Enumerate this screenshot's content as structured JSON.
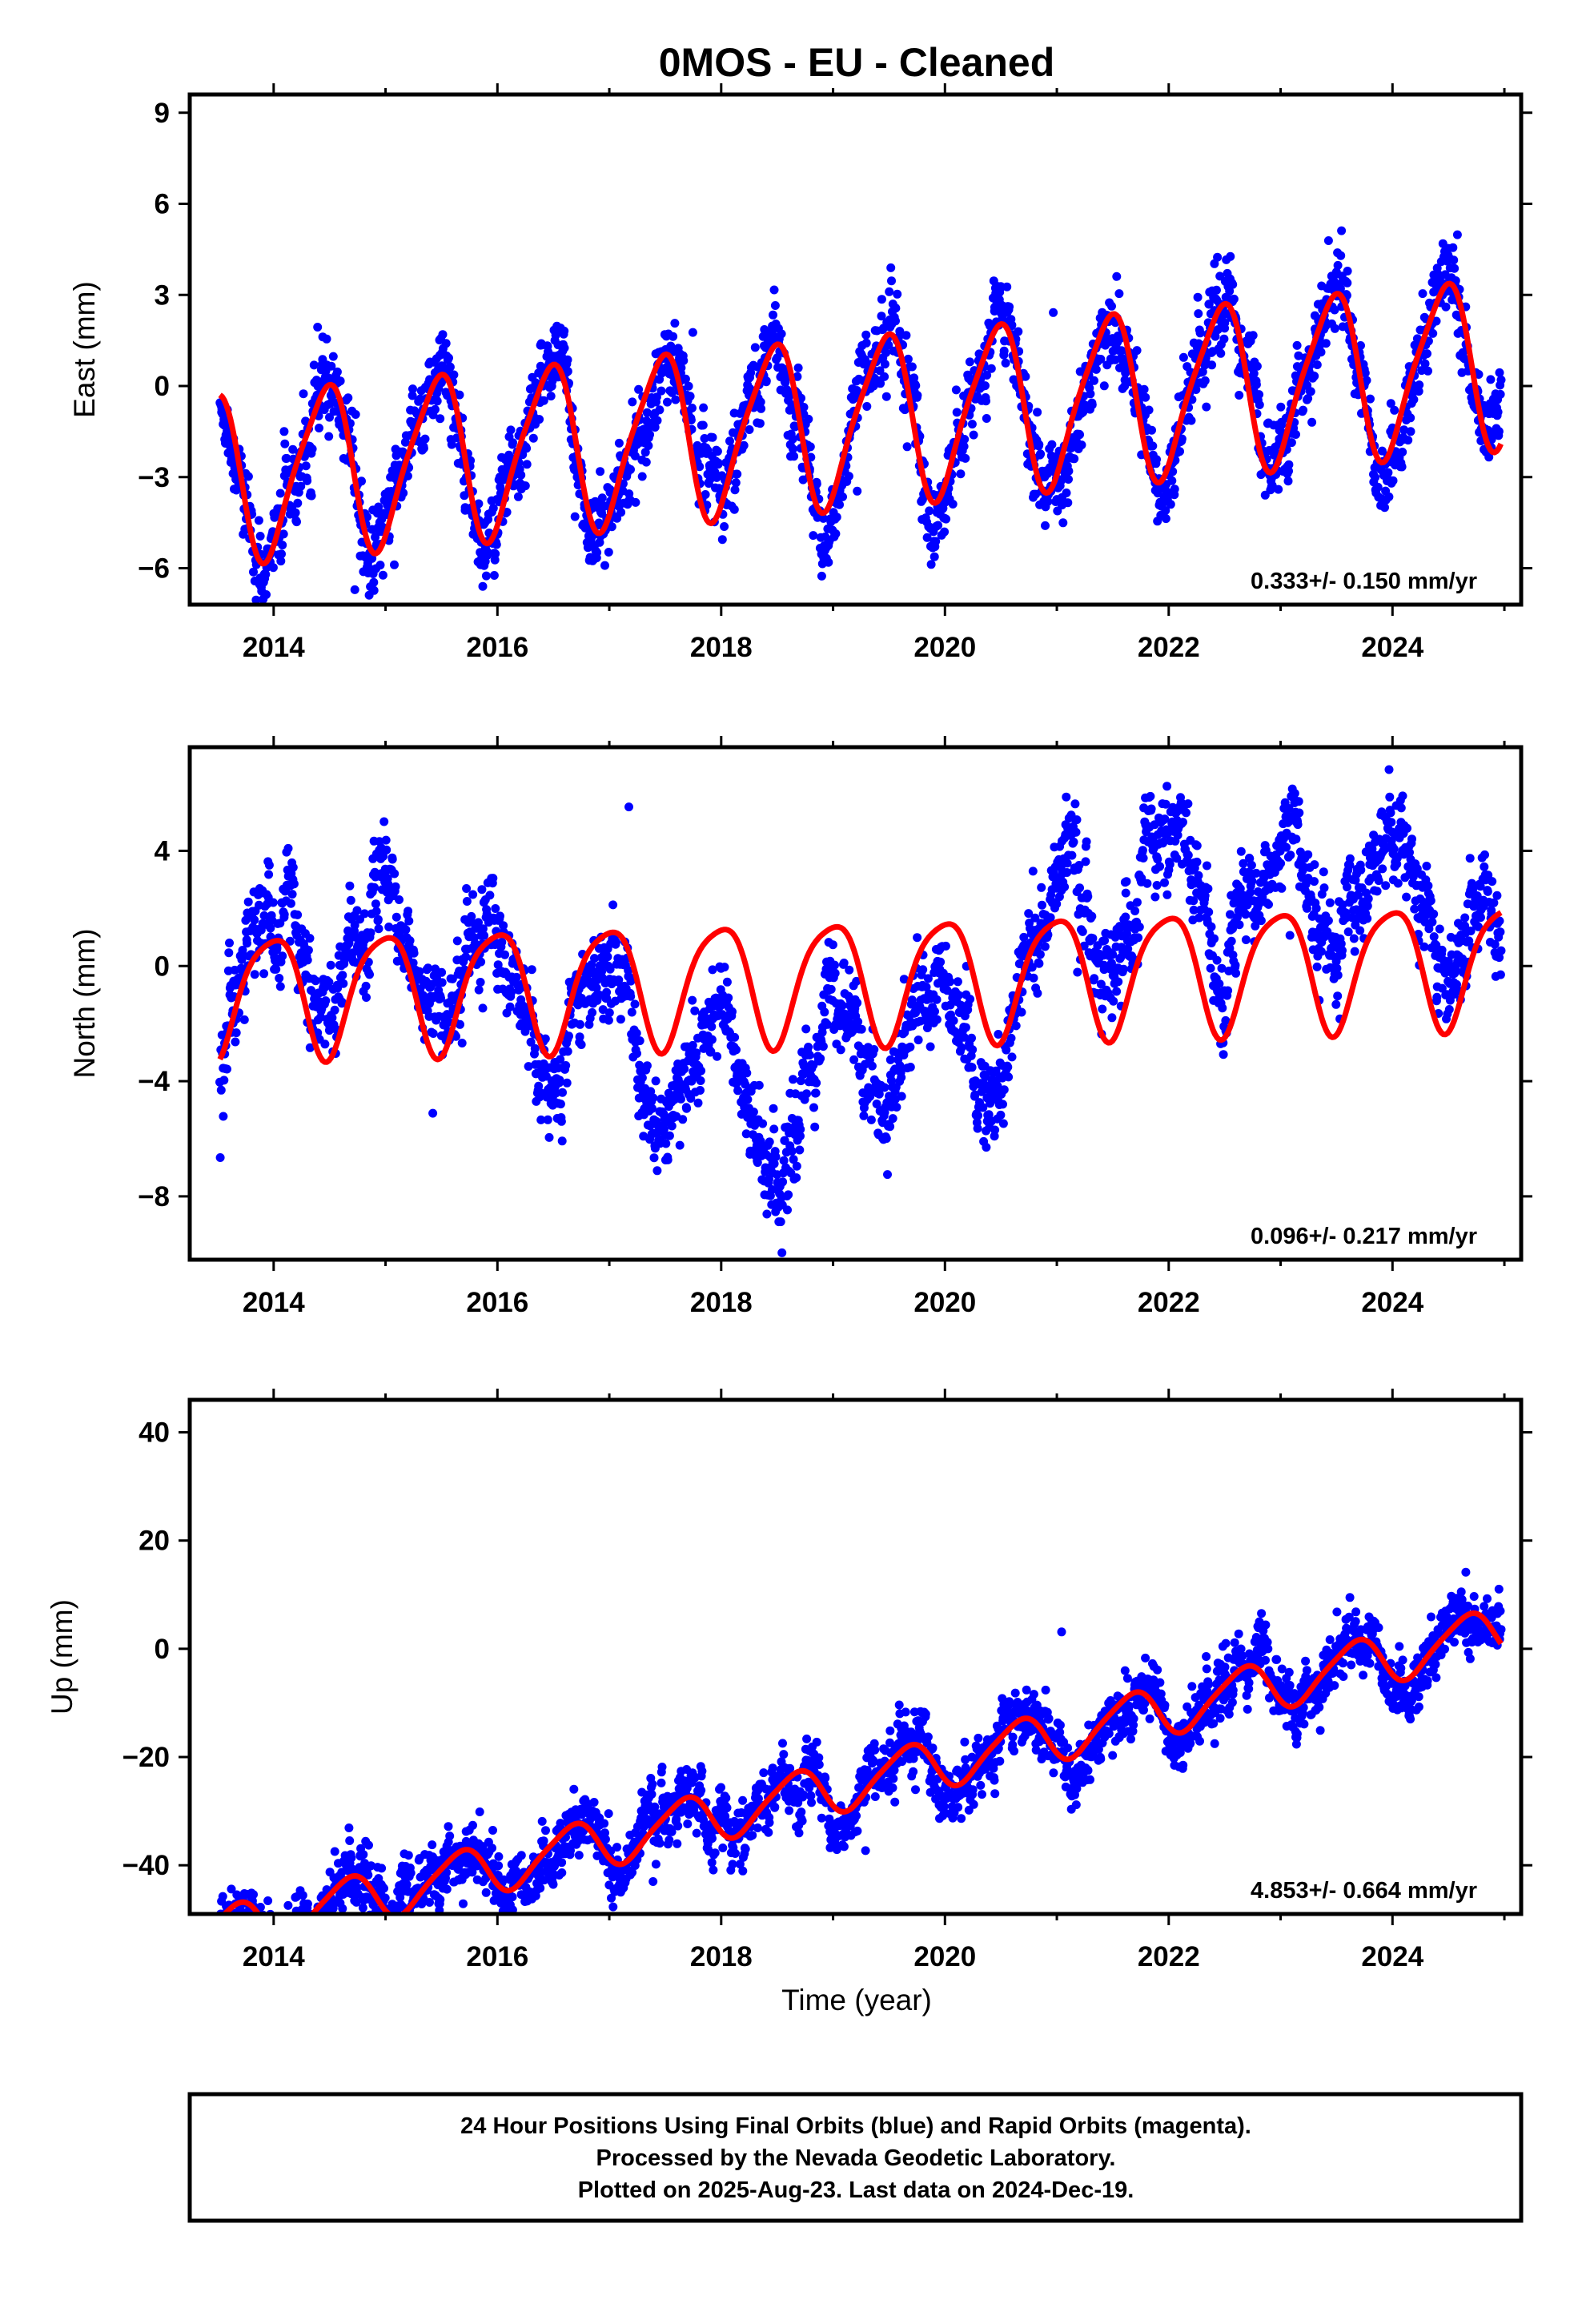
{
  "title": "0MOS  - EU - Cleaned",
  "xlabel": "Time (year)",
  "colors": {
    "points": "#0000ff",
    "fit": "#ff0000",
    "frame": "#000000"
  },
  "footer": {
    "line1": "24 Hour Positions Using Final Orbits (blue) and Rapid Orbits (magenta).",
    "line2": "Processed by the Nevada Geodetic Laboratory.",
    "line3": "Plotted on 2025-Aug-23. Last data on 2024-Dec-19."
  },
  "chart_data": [
    {
      "type": "scatter",
      "panel": "east",
      "ylabel": "East (mm)",
      "rate_label": "0.333+/- 0.150 mm/yr",
      "xlim": [
        2013.25,
        2025.15
      ],
      "ylim": [
        -7.2,
        9.6
      ],
      "xticks": [
        2014,
        2016,
        2018,
        2020,
        2022,
        2024
      ],
      "yticks": [
        -6,
        -3,
        0,
        3,
        6,
        9
      ],
      "time_range": [
        2013.52,
        2024.97
      ],
      "series": [
        {
          "kind": "points",
          "color": "#0000ff",
          "model": {
            "offset": -1.1,
            "trend": 0.333,
            "annual_amp": 2.7,
            "annual_peak": 0.45,
            "semiannual_amp": 0.5,
            "semiannual_peak": 0.1,
            "scatter": 1.1
          }
        },
        {
          "kind": "fit",
          "color": "#ff0000",
          "model": {
            "offset": -1.1,
            "trend": 0.333,
            "annual_amp": 2.7,
            "annual_peak": 0.45,
            "semiannual_amp": 0.5,
            "semiannual_peak": 0.1
          }
        }
      ]
    },
    {
      "type": "scatter",
      "panel": "north",
      "ylabel": "North (mm)",
      "rate_label": "0.096+/- 0.217 mm/yr",
      "xlim": [
        2013.25,
        2025.15
      ],
      "ylim": [
        -10.2,
        7.6
      ],
      "xticks": [
        2014,
        2016,
        2018,
        2020,
        2022,
        2024
      ],
      "yticks": [
        -8,
        -4,
        0,
        4
      ],
      "time_range": [
        2013.52,
        2024.97
      ],
      "series": [
        {
          "kind": "points",
          "color": "#0000ff",
          "model": {
            "offset": -0.4,
            "trend": 0.096,
            "annual_amp": 2.1,
            "annual_peak": 0.98,
            "semiannual_amp": 0.4,
            "semiannual_peak": 0.2,
            "scatter": 1.3,
            "drift": [
              [
                2013.5,
                0.5
              ],
              [
                2015.0,
                2.0
              ],
              [
                2016.5,
                -1.0
              ],
              [
                2017.5,
                -2.0
              ],
              [
                2018.6,
                -5.0
              ],
              [
                2019.5,
                -1.5
              ],
              [
                2020.3,
                -2.5
              ],
              [
                2021.0,
                1.5
              ],
              [
                2022.0,
                3.0
              ],
              [
                2023.0,
                2.5
              ],
              [
                2024.0,
                3.0
              ],
              [
                2024.97,
                0.5
              ]
            ]
          }
        },
        {
          "kind": "fit",
          "color": "#ff0000",
          "model": {
            "offset": -0.4,
            "trend": 0.096,
            "annual_amp": 2.1,
            "annual_peak": 0.98,
            "semiannual_amp": 0.4,
            "semiannual_peak": 0.2
          }
        }
      ]
    },
    {
      "type": "scatter",
      "panel": "up",
      "ylabel": "Up (mm)",
      "rate_label": "4.853+/- 0.664 mm/yr",
      "xlim": [
        2013.25,
        2025.15
      ],
      "ylim": [
        -49,
        46
      ],
      "xticks": [
        2014,
        2016,
        2018,
        2020,
        2022,
        2024
      ],
      "yticks": [
        -40,
        -20,
        0,
        20,
        40
      ],
      "time_range": [
        2013.52,
        2024.97
      ],
      "series": [
        {
          "kind": "points",
          "color": "#0000ff",
          "model": {
            "offset": -24.5,
            "trend": 4.853,
            "annual_amp": 4.5,
            "annual_peak": 0.65,
            "semiannual_amp": 0.8,
            "semiannual_peak": 0.3,
            "scatter": 4.5
          }
        },
        {
          "kind": "fit",
          "color": "#ff0000",
          "model": {
            "offset": -24.5,
            "trend": 4.853,
            "annual_amp": 4.5,
            "annual_peak": 0.65,
            "semiannual_amp": 0.8,
            "semiannual_peak": 0.3
          }
        }
      ]
    }
  ]
}
